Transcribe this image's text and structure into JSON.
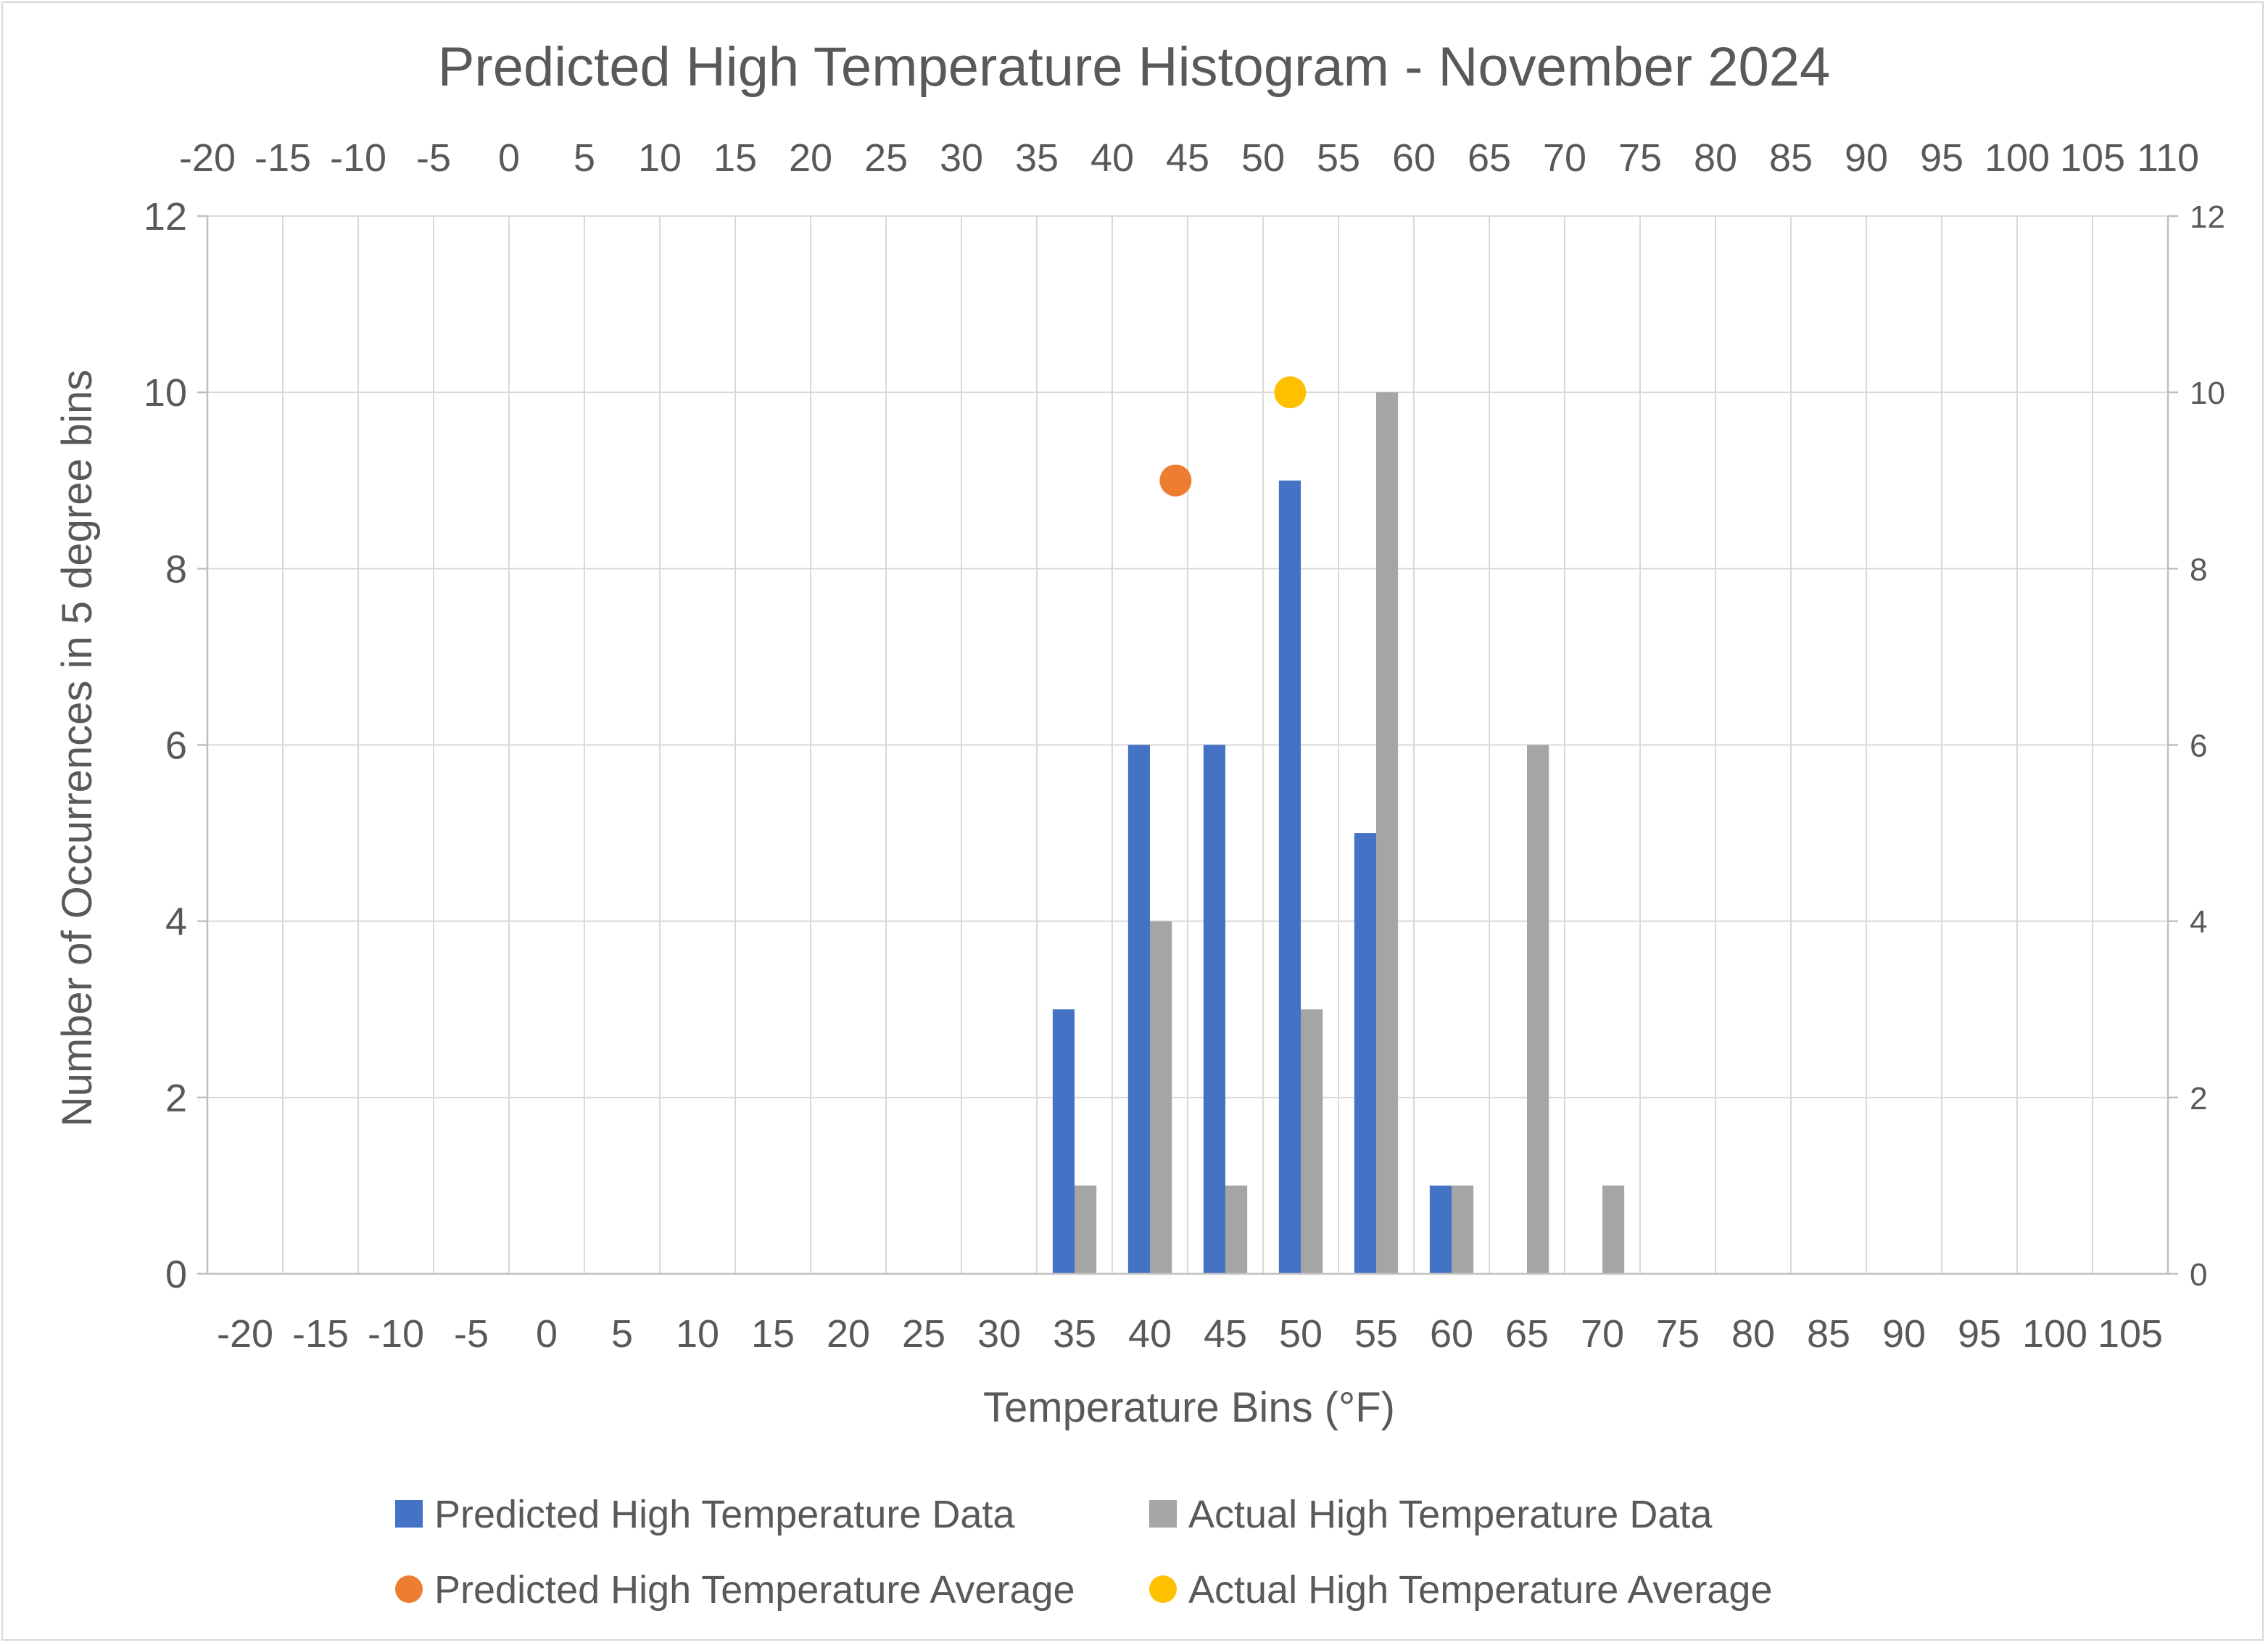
{
  "chart_data": {
    "type": "bar",
    "title": "Predicted High Temperature Histogram - November 2024",
    "xlabel": "Temperature Bins (°F)",
    "ylabel": "Number of Occurrences in 5 degree bins",
    "categories": [
      "-20",
      "-15",
      "-10",
      "-5",
      "0",
      "5",
      "10",
      "15",
      "20",
      "25",
      "30",
      "35",
      "40",
      "45",
      "50",
      "55",
      "60",
      "65",
      "70",
      "75",
      "80",
      "85",
      "90",
      "95",
      "100",
      "105"
    ],
    "secondary_x_ticks": [
      "-20",
      "-15",
      "-10",
      "-5",
      "0",
      "5",
      "10",
      "15",
      "20",
      "25",
      "30",
      "35",
      "40",
      "45",
      "50",
      "55",
      "60",
      "65",
      "70",
      "75",
      "80",
      "85",
      "90",
      "95",
      "100",
      "105",
      "110"
    ],
    "secondary_x_range": [
      -20,
      110
    ],
    "ylim": [
      0,
      12
    ],
    "y_ticks": [
      0,
      2,
      4,
      6,
      8,
      10,
      12
    ],
    "grid": true,
    "legend_position": "bottom",
    "series": [
      {
        "name": "Predicted High Temperature Data",
        "kind": "bar",
        "color": "#4472c4",
        "values": [
          0,
          0,
          0,
          0,
          0,
          0,
          0,
          0,
          0,
          0,
          0,
          3,
          6,
          6,
          9,
          5,
          1,
          0,
          0,
          0,
          0,
          0,
          0,
          0,
          0,
          0
        ]
      },
      {
        "name": "Actual High Temperature Data",
        "kind": "bar",
        "color": "#a5a5a5",
        "values": [
          0,
          0,
          0,
          0,
          0,
          0,
          0,
          0,
          0,
          0,
          0,
          1,
          4,
          1,
          3,
          10,
          1,
          6,
          1,
          0,
          0,
          0,
          0,
          0,
          0,
          0
        ]
      },
      {
        "name": "Predicted High Temperature Average",
        "kind": "point",
        "color": "#ed7d31",
        "x": 44.2,
        "y": 9
      },
      {
        "name": "Actual High Temperature Average",
        "kind": "point",
        "color": "#ffc000",
        "x": 51.8,
        "y": 10
      }
    ]
  }
}
